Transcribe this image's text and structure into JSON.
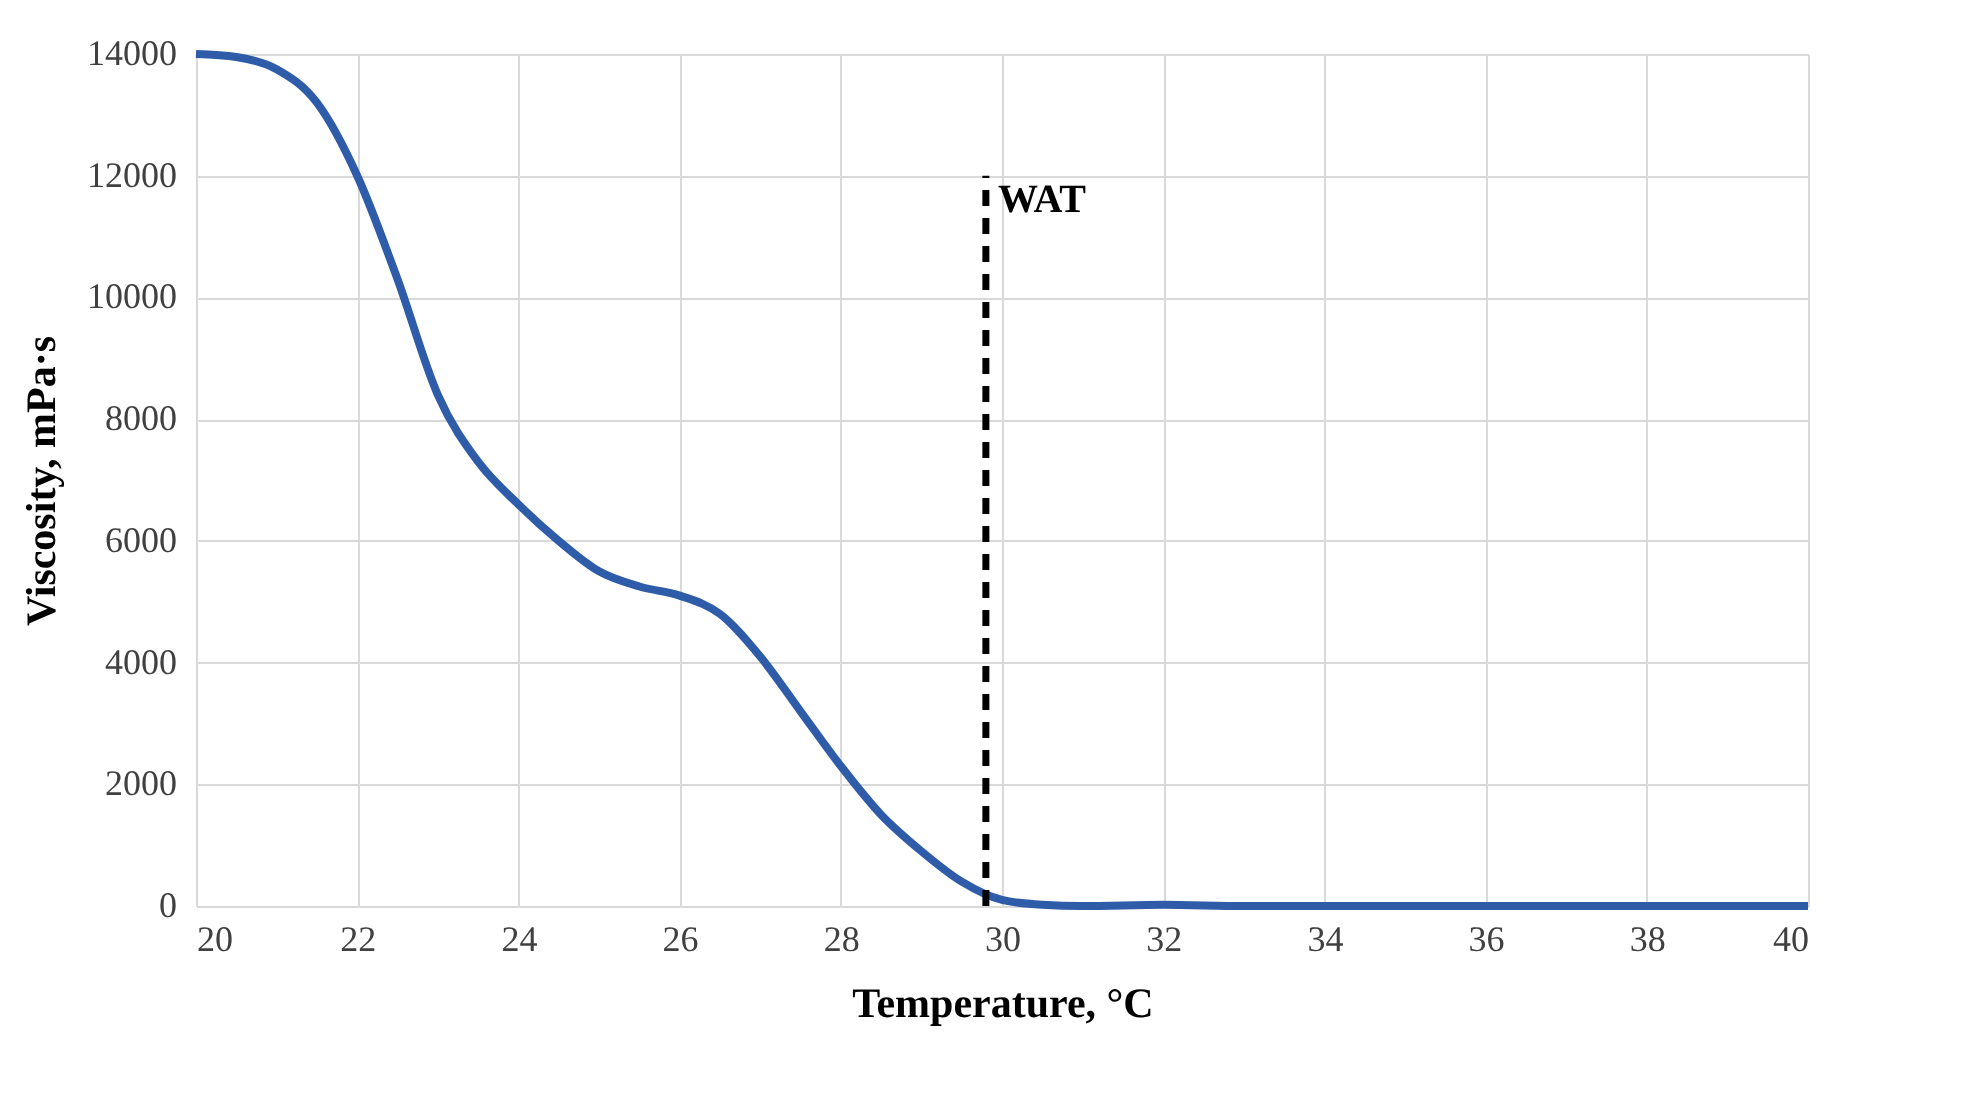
{
  "chart_data": {
    "type": "line",
    "xlabel": "Temperature, °C",
    "ylabel": "Viscosity, mPa·s",
    "xlim": [
      20,
      40
    ],
    "xticks": [
      20,
      22,
      24,
      26,
      28,
      30,
      32,
      34,
      36,
      38,
      40
    ],
    "ylim": [
      0,
      14000
    ],
    "yticks": [
      0,
      2000,
      4000,
      6000,
      8000,
      10000,
      12000,
      14000
    ],
    "grid": true,
    "series": [
      {
        "color": "#2e5ca8",
        "line_style": "solid",
        "x": [
          20,
          20.5,
          21,
          21.5,
          22,
          22.5,
          23,
          23.5,
          24,
          24.5,
          25,
          25.5,
          26,
          26.5,
          27,
          27.5,
          28,
          28.5,
          29,
          29.5,
          30,
          30.5,
          31,
          32,
          33,
          34,
          35,
          36,
          37,
          38,
          39,
          40
        ],
        "values": [
          14000,
          13950,
          13750,
          13200,
          12000,
          10300,
          8400,
          7300,
          6600,
          6000,
          5500,
          5250,
          5100,
          4800,
          4100,
          3200,
          2300,
          1500,
          900,
          400,
          100,
          20,
          0,
          20,
          0,
          0,
          0,
          0,
          0,
          0,
          0,
          0
        ]
      },
      {
        "color": "#000000",
        "line_style": "dashed",
        "x": [
          29.8,
          29.8
        ],
        "values": [
          0,
          12000
        ]
      }
    ],
    "annotations": [
      {
        "text": "WAT",
        "x": 29.8,
        "y": 12000
      }
    ]
  }
}
